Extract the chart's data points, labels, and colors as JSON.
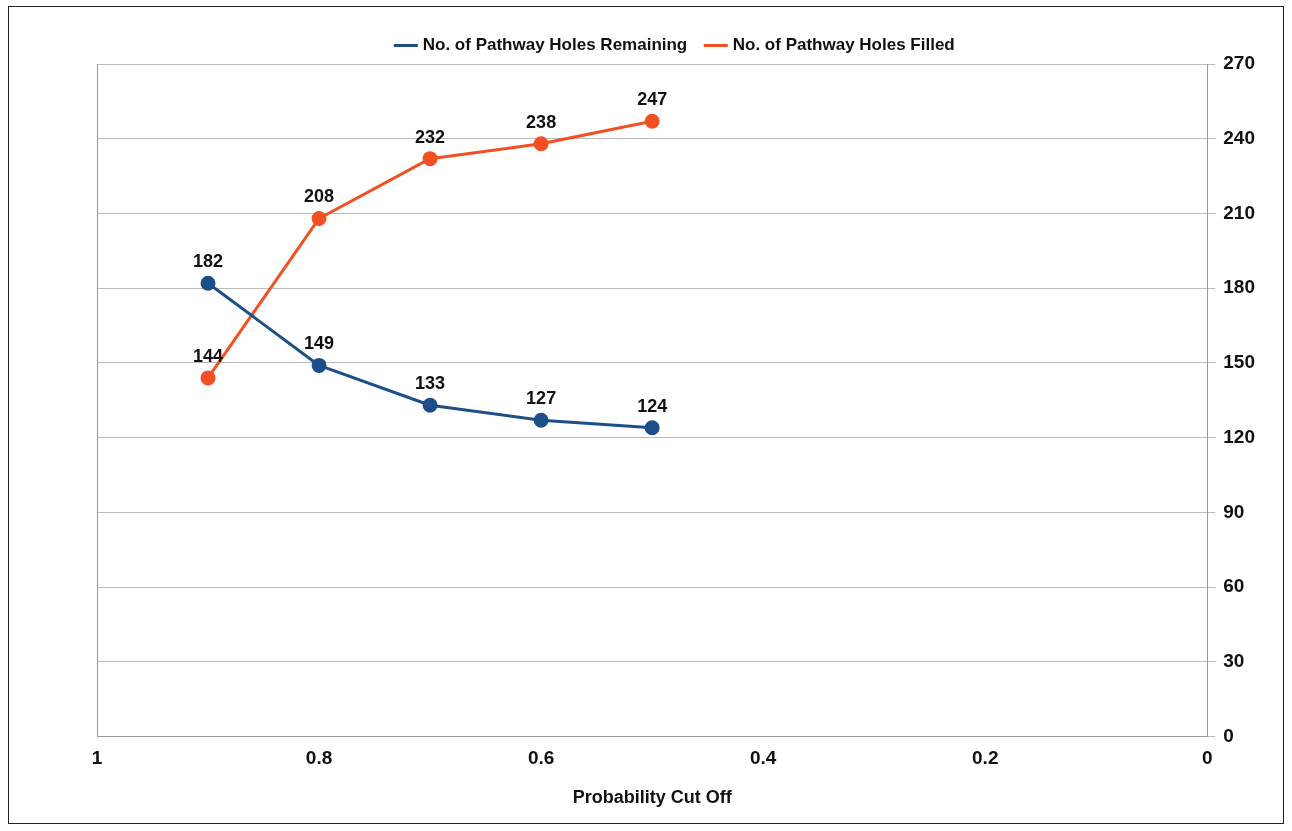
{
  "chart_data": {
    "type": "line",
    "xlabel": "Probability Cut Off",
    "x": [
      0.9,
      0.8,
      0.7,
      0.6,
      0.5
    ],
    "series": [
      {
        "name": "No. of Pathway Holes Remaining",
        "color": "#1c4f8a",
        "values": [
          182,
          149,
          133,
          127,
          124
        ]
      },
      {
        "name": "No. of Pathway Holes Filled",
        "color": "#f25022",
        "values": [
          144,
          208,
          232,
          238,
          247
        ]
      }
    ],
    "xlim": [
      1,
      0
    ],
    "xticks": [
      1,
      0.8,
      0.6,
      0.4,
      0.2,
      0
    ],
    "ylim": [
      0,
      270
    ],
    "yticks": [
      0,
      30,
      60,
      90,
      120,
      150,
      180,
      210,
      240,
      270
    ],
    "grid": "y",
    "legend": "top",
    "marker": "circle",
    "line_style": "solid",
    "data_labels": true
  }
}
